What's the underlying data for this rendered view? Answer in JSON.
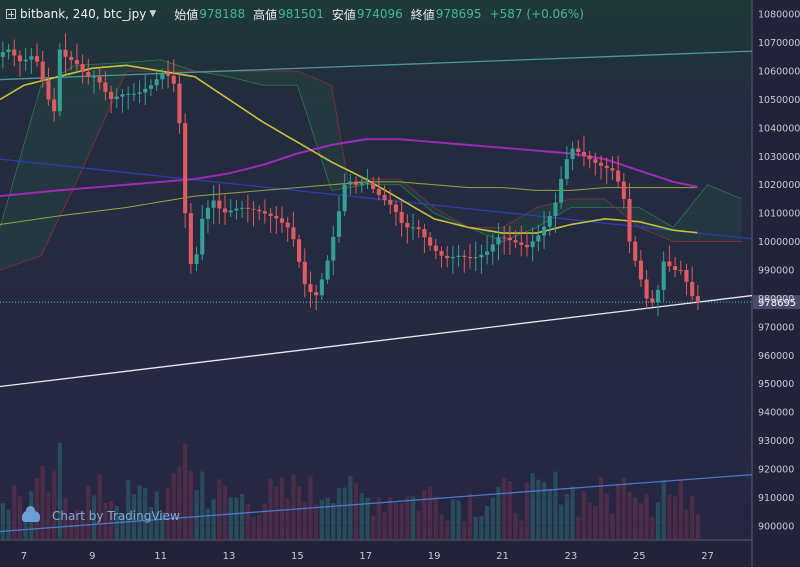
{
  "header": {
    "symbol": "bitbank, 240, btc_jpy",
    "open_label": "始値",
    "open_value": "978188",
    "high_label": "高値",
    "high_value": "981501",
    "low_label": "安値",
    "low_value": "974096",
    "close_label": "終値",
    "close_value": "978695",
    "change": "+587 (+0.06%)"
  },
  "watermark": "Chart by TradingView",
  "colors": {
    "background": "#252540",
    "up": "#35a092",
    "down": "#e15a5f",
    "ma_short": "#c8c03a",
    "ma_long": "#9d2bb8",
    "ma_mid": "#8fa83c",
    "cloud_up": "#2a6a4a",
    "cloud_down": "#6a2a3a",
    "price_line": "#4fc8c8"
  },
  "chart_data": {
    "type": "candlestick",
    "symbol": "btc_jpy",
    "timeframe": "240",
    "ylim": [
      895000,
      1085000
    ],
    "y_ticks": [
      900000,
      910000,
      920000,
      930000,
      940000,
      950000,
      960000,
      970000,
      980000,
      990000,
      1000000,
      1010000,
      1020000,
      1030000,
      1040000,
      1050000,
      1060000,
      1070000,
      1080000
    ],
    "y_tick_labels": [
      "900000",
      "910000",
      "920000",
      "930000",
      "940000",
      "950000",
      "960000",
      "970000",
      "980000",
      "990000",
      "1000000",
      "1010000",
      "1020000",
      "1030000",
      "1040000",
      "1050000",
      "1060000",
      "1070000",
      "1080000"
    ],
    "x_range": [
      6.3,
      28.3
    ],
    "x_ticks": [
      7,
      9,
      11,
      13,
      15,
      17,
      19,
      21,
      23,
      25,
      27
    ],
    "x_tick_labels": [
      "7",
      "9",
      "11",
      "13",
      "15",
      "17",
      "19",
      "21",
      "23",
      "25",
      "27"
    ],
    "last_price": 978695,
    "last_price_label": "978695",
    "price_anchors": [
      [
        6.3,
        1065000
      ],
      [
        6.6,
        1068000
      ],
      [
        7.0,
        1063000
      ],
      [
        7.4,
        1066000
      ],
      [
        7.8,
        1050000
      ],
      [
        8.0,
        1045000
      ],
      [
        8.1,
        1068000
      ],
      [
        8.3,
        1065000
      ],
      [
        8.6,
        1063000
      ],
      [
        8.9,
        1058000
      ],
      [
        9.2,
        1058000
      ],
      [
        9.6,
        1050000
      ],
      [
        10.0,
        1052000
      ],
      [
        10.4,
        1052000
      ],
      [
        10.8,
        1055000
      ],
      [
        11.2,
        1060000
      ],
      [
        11.5,
        1055000
      ],
      [
        11.6,
        1048000
      ],
      [
        11.8,
        1010000
      ],
      [
        11.95,
        992000
      ],
      [
        12.1,
        993000
      ],
      [
        12.3,
        1008000
      ],
      [
        12.6,
        1015000
      ],
      [
        12.9,
        1010000
      ],
      [
        13.4,
        1012000
      ],
      [
        13.9,
        1011000
      ],
      [
        14.5,
        1008000
      ],
      [
        14.9,
        1004000
      ],
      [
        15.3,
        985000
      ],
      [
        15.6,
        980000
      ],
      [
        15.9,
        990000
      ],
      [
        16.2,
        1005000
      ],
      [
        16.5,
        1022000
      ],
      [
        16.8,
        1020000
      ],
      [
        17.1,
        1021000
      ],
      [
        17.5,
        1016000
      ],
      [
        17.9,
        1012000
      ],
      [
        18.2,
        1005000
      ],
      [
        18.6,
        1005000
      ],
      [
        19.0,
        998000
      ],
      [
        19.4,
        994000
      ],
      [
        19.8,
        995000
      ],
      [
        20.2,
        994000
      ],
      [
        20.6,
        996000
      ],
      [
        21.0,
        1002000
      ],
      [
        21.4,
        1000000
      ],
      [
        21.8,
        998000
      ],
      [
        22.2,
        1003000
      ],
      [
        22.6,
        1012000
      ],
      [
        22.9,
        1027000
      ],
      [
        23.1,
        1033000
      ],
      [
        23.5,
        1030000
      ],
      [
        23.9,
        1027000
      ],
      [
        24.3,
        1025000
      ],
      [
        24.6,
        1018000
      ],
      [
        24.8,
        1000000
      ],
      [
        25.0,
        992000
      ],
      [
        25.3,
        980000
      ],
      [
        25.55,
        978000
      ],
      [
        25.8,
        993000
      ],
      [
        26.1,
        990000
      ],
      [
        26.3,
        990000
      ],
      [
        26.5,
        985000
      ],
      [
        26.7,
        978695
      ]
    ],
    "ma_short_line": [
      [
        6.3,
        1050000
      ],
      [
        7.0,
        1055000
      ],
      [
        8.0,
        1058000
      ],
      [
        9.0,
        1061000
      ],
      [
        10.0,
        1062000
      ],
      [
        11.0,
        1060000
      ],
      [
        12.0,
        1058000
      ],
      [
        13.0,
        1050000
      ],
      [
        14.0,
        1042000
      ],
      [
        15.0,
        1035000
      ],
      [
        16.0,
        1028000
      ],
      [
        17.0,
        1022000
      ],
      [
        18.0,
        1015000
      ],
      [
        19.0,
        1008000
      ],
      [
        20.0,
        1005000
      ],
      [
        21.0,
        1003000
      ],
      [
        22.0,
        1003000
      ],
      [
        23.0,
        1006000
      ],
      [
        24.0,
        1008000
      ],
      [
        25.0,
        1007000
      ],
      [
        26.0,
        1004000
      ],
      [
        26.8,
        1003000
      ]
    ],
    "ma_long_line": [
      [
        6.3,
        1016000
      ],
      [
        8.0,
        1018000
      ],
      [
        10.0,
        1020000
      ],
      [
        12.0,
        1022000
      ],
      [
        13.0,
        1024000
      ],
      [
        14.0,
        1027000
      ],
      [
        15.0,
        1031000
      ],
      [
        16.0,
        1034000
      ],
      [
        17.0,
        1036000
      ],
      [
        18.0,
        1036000
      ],
      [
        19.0,
        1035000
      ],
      [
        20.0,
        1034000
      ],
      [
        21.0,
        1033000
      ],
      [
        22.0,
        1032000
      ],
      [
        23.0,
        1031000
      ],
      [
        24.0,
        1029000
      ],
      [
        25.0,
        1025000
      ],
      [
        26.0,
        1021000
      ],
      [
        26.8,
        1019000
      ]
    ],
    "ma_mid_line": [
      [
        6.3,
        1006000
      ],
      [
        8.0,
        1009000
      ],
      [
        10.0,
        1012000
      ],
      [
        12.0,
        1016000
      ],
      [
        14.0,
        1018000
      ],
      [
        15.0,
        1019000
      ],
      [
        16.0,
        1020000
      ],
      [
        17.0,
        1021000
      ],
      [
        18.0,
        1021000
      ],
      [
        19.0,
        1020000
      ],
      [
        20.0,
        1019000
      ],
      [
        21.0,
        1019000
      ],
      [
        22.0,
        1018000
      ],
      [
        23.0,
        1018000
      ],
      [
        24.0,
        1019000
      ],
      [
        25.0,
        1019000
      ],
      [
        26.0,
        1019000
      ],
      [
        26.8,
        1019000
      ]
    ],
    "cloud_a": [
      [
        6.3,
        1005000
      ],
      [
        7.5,
        1055000
      ],
      [
        8.5,
        1062000
      ],
      [
        10.0,
        1063000
      ],
      [
        11.0,
        1064000
      ],
      [
        12.0,
        1060000
      ],
      [
        13.0,
        1058000
      ],
      [
        14.0,
        1055000
      ],
      [
        15.0,
        1055000
      ],
      [
        16.0,
        1018000
      ],
      [
        17.0,
        1020000
      ],
      [
        18.0,
        1020000
      ],
      [
        19.0,
        1010000
      ],
      [
        20.0,
        1005000
      ],
      [
        21.0,
        1000000
      ],
      [
        22.0,
        1005000
      ],
      [
        23.0,
        1012000
      ],
      [
        24.0,
        1012000
      ],
      [
        25.0,
        1012000
      ],
      [
        26.0,
        1005000
      ],
      [
        27.0,
        1020000
      ],
      [
        28.0,
        1015000
      ]
    ],
    "cloud_b": [
      [
        6.3,
        990000
      ],
      [
        7.5,
        995000
      ],
      [
        8.5,
        1020000
      ],
      [
        10.0,
        1060000
      ],
      [
        11.0,
        1060000
      ],
      [
        12.0,
        1060000
      ],
      [
        13.0,
        1060000
      ],
      [
        14.0,
        1060000
      ],
      [
        15.0,
        1060000
      ],
      [
        16.0,
        1055000
      ],
      [
        16.5,
        1020000
      ],
      [
        17.0,
        1022000
      ],
      [
        18.0,
        1022000
      ],
      [
        19.0,
        1012000
      ],
      [
        20.0,
        1005000
      ],
      [
        21.0,
        1005000
      ],
      [
        22.0,
        1012000
      ],
      [
        23.0,
        1015000
      ],
      [
        24.0,
        1015000
      ],
      [
        25.0,
        1005000
      ],
      [
        26.0,
        1000000
      ],
      [
        27.0,
        1000000
      ],
      [
        28.0,
        1000000
      ]
    ],
    "trendlines": [
      {
        "name": "upper-resistance",
        "color": "#4a9a9a",
        "from": [
          6.3,
          1057000
        ],
        "to": [
          28.3,
          1067000
        ]
      },
      {
        "name": "descending",
        "color": "#2a3fb0",
        "from": [
          6.3,
          1029000
        ],
        "to": [
          28.3,
          1001000
        ]
      },
      {
        "name": "support",
        "color": "#e8e8f0",
        "from": [
          6.3,
          949000
        ],
        "to": [
          28.3,
          981000
        ]
      },
      {
        "name": "volume-trend",
        "color": "#4a78c8",
        "from": [
          6.3,
          898000
        ],
        "to": [
          28.3,
          918000
        ]
      }
    ]
  }
}
